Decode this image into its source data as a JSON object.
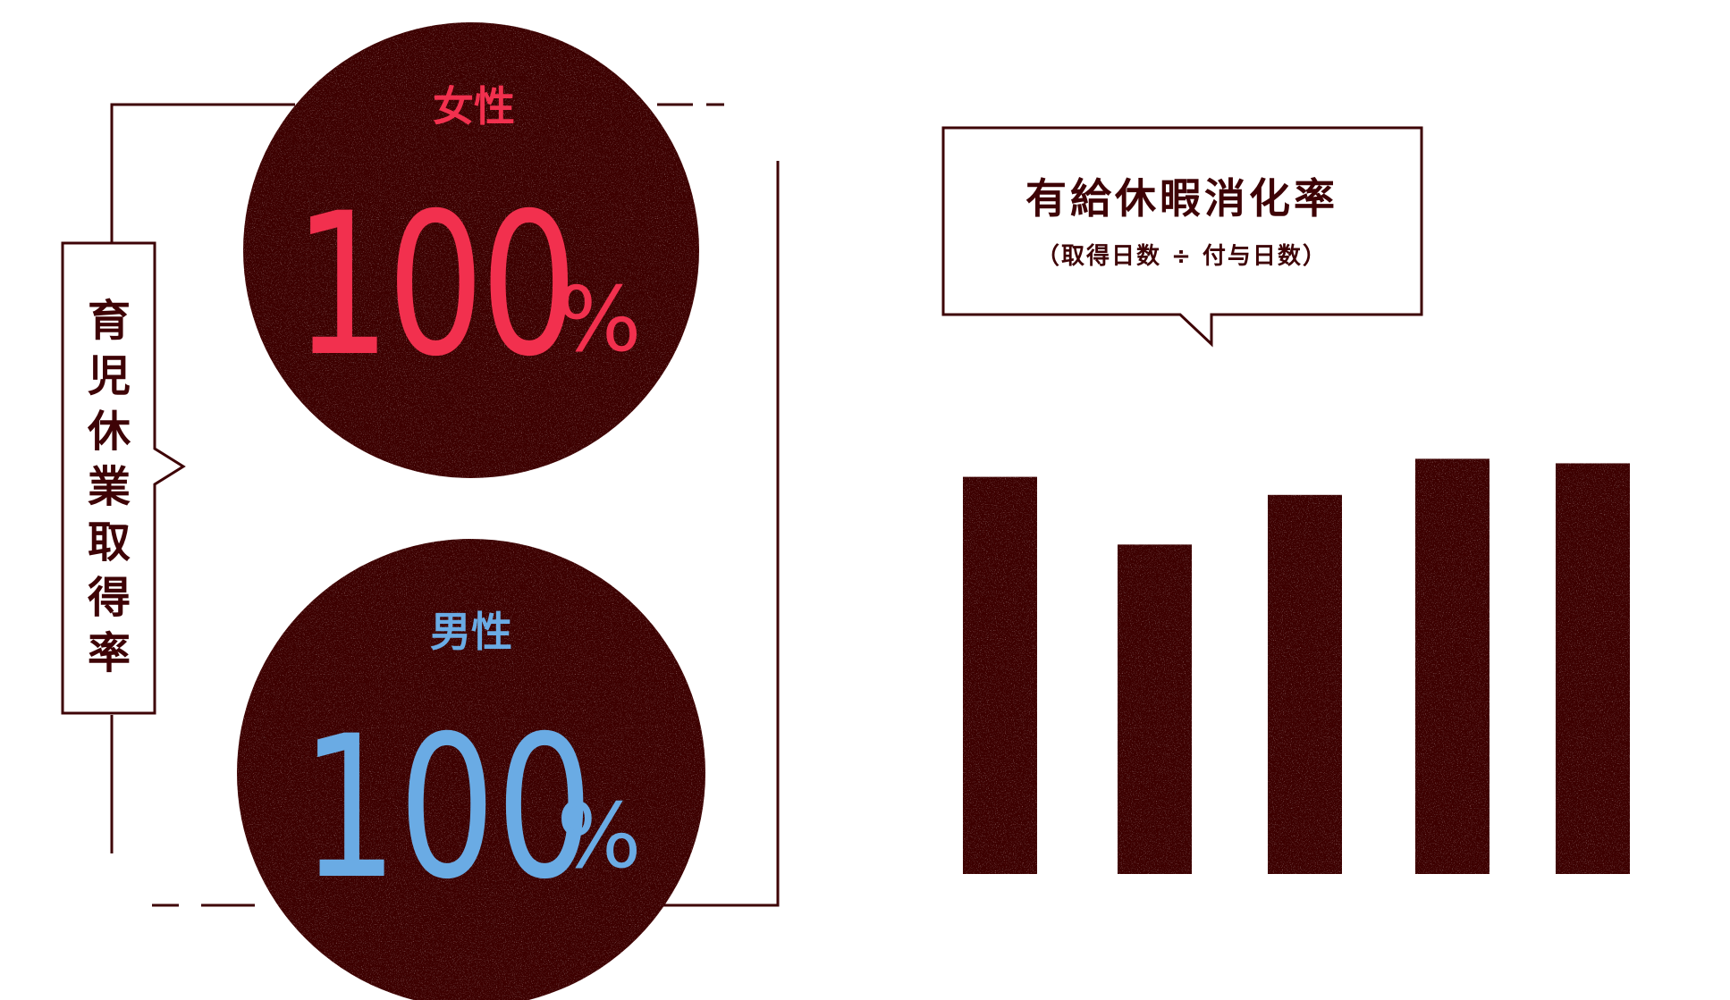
{
  "chart_data": [
    {
      "type": "pie",
      "title": "育児休業取得率",
      "categories": [
        "女性",
        "男性"
      ],
      "values": [
        100,
        100
      ],
      "unit": "%"
    },
    {
      "type": "bar",
      "title": "有給休暇消化率",
      "subtitle": "（取得日数 ÷ 付与日数）",
      "categories": [
        "",
        "",
        "",
        "",
        ""
      ],
      "values": [
        88,
        73,
        84,
        92,
        91
      ],
      "ylim": [
        0,
        100
      ],
      "grid": false,
      "xlabel": "",
      "ylabel": ""
    }
  ],
  "colors": {
    "dark": "#3e0306",
    "female": "#f2304e",
    "male": "#6aabe4",
    "background": "#ffffff"
  }
}
